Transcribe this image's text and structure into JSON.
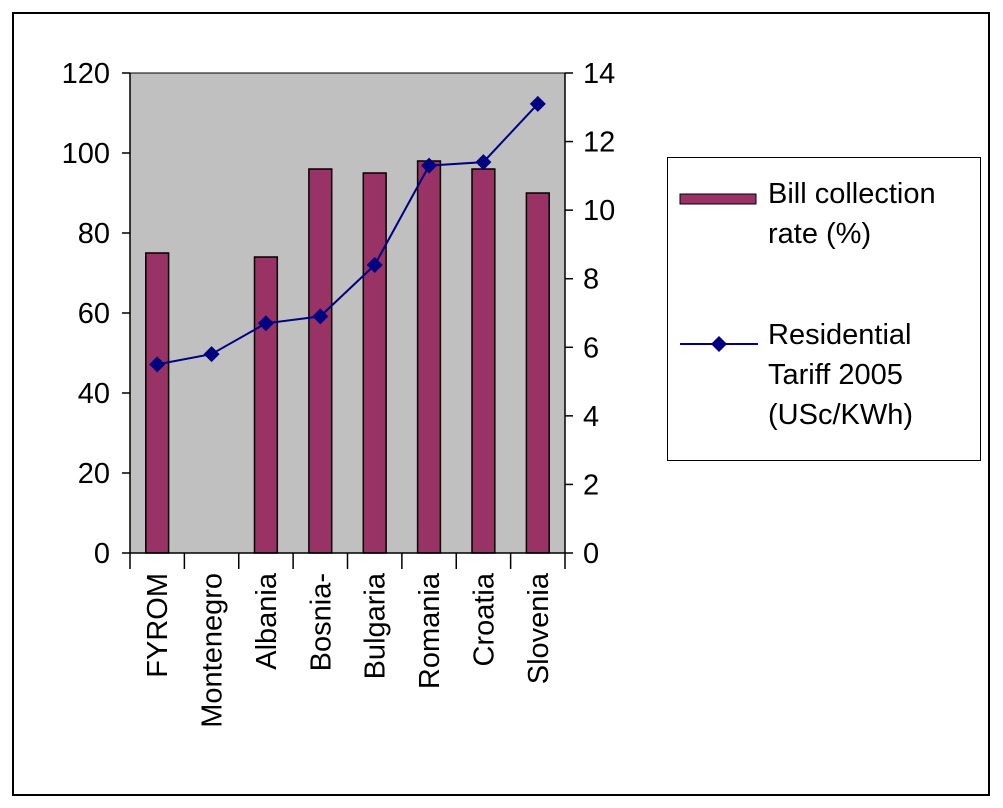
{
  "chart_data": {
    "type": "bar",
    "categories": [
      "FYROM",
      "Montenegro",
      "Albania",
      "Bosnia-",
      "Bulgaria",
      "Romania",
      "Croatia",
      "Slovenia"
    ],
    "series": [
      {
        "name": "Bill collection rate (%)",
        "type": "bar",
        "axis": "left",
        "color": "#993366",
        "values": [
          75,
          null,
          74,
          96,
          95,
          98,
          96,
          90
        ]
      },
      {
        "name": "Residential Tariff 2005 (USc/KWh)",
        "type": "line",
        "axis": "right",
        "color": "#000080",
        "marker": "diamond",
        "values": [
          5.5,
          5.8,
          6.7,
          6.9,
          8.4,
          11.3,
          11.4,
          13.1
        ]
      }
    ],
    "y_left": {
      "ylim": [
        0,
        120
      ],
      "ticks": [
        0,
        20,
        40,
        60,
        80,
        100,
        120
      ]
    },
    "y_right": {
      "ylim": [
        0,
        14
      ],
      "ticks": [
        0,
        2,
        4,
        6,
        8,
        10,
        12,
        14
      ]
    },
    "plot_background": "#c0c0c0",
    "grid": false,
    "legend_position": "right"
  },
  "legend": {
    "bar_label_lines": [
      "Bill collection",
      "rate (%)"
    ],
    "line_label_lines": [
      "Residential",
      "Tariff 2005",
      "(USc/KWh)"
    ]
  }
}
